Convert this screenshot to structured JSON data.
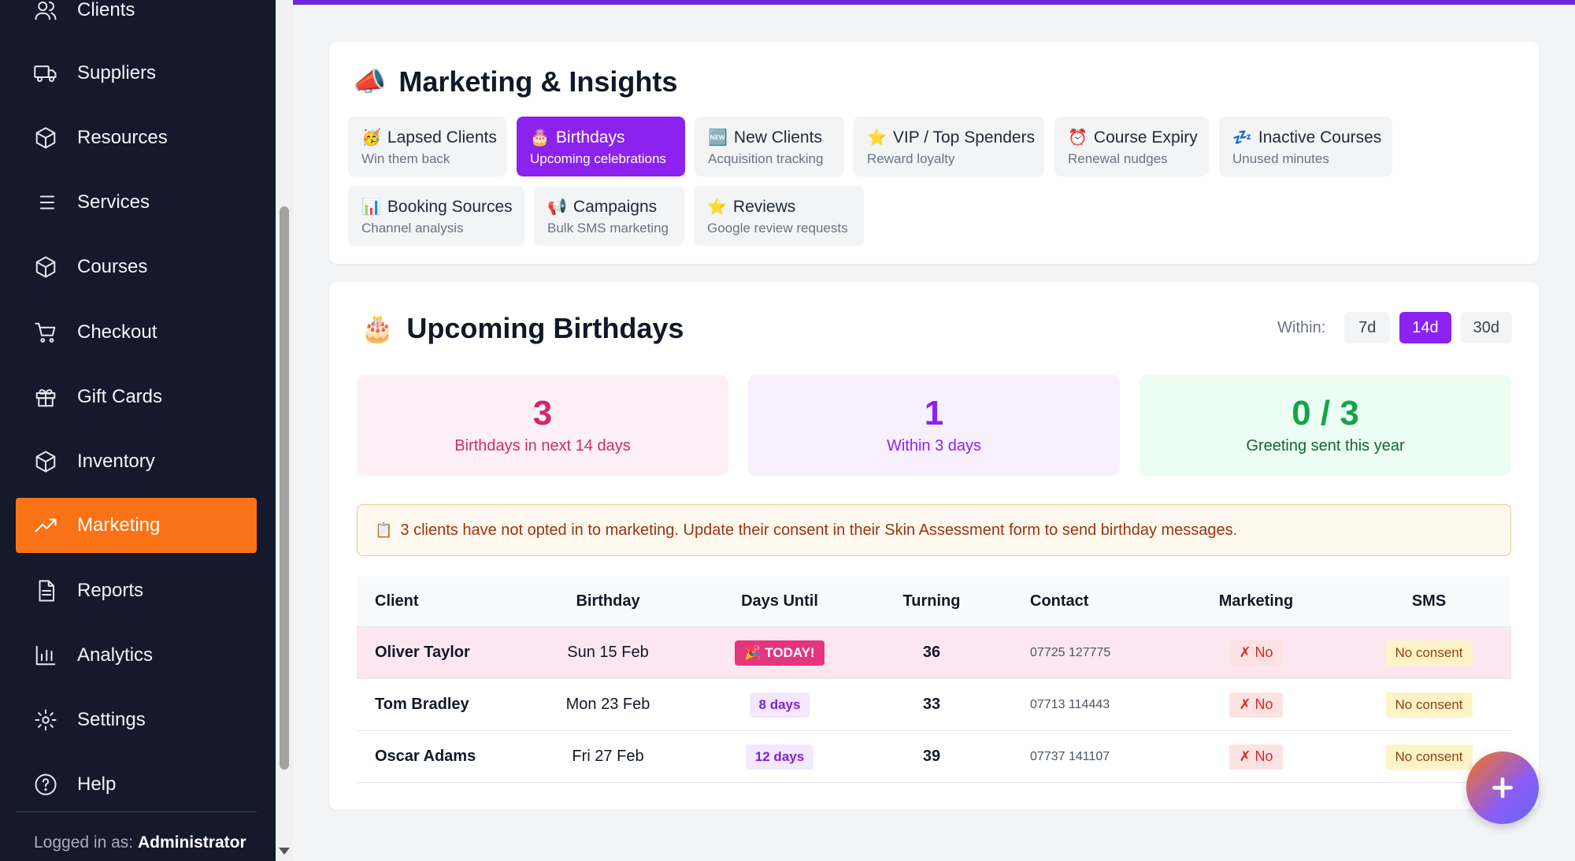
{
  "sidebar": {
    "items": [
      {
        "label": "Clients",
        "icon": "users-icon"
      },
      {
        "label": "Suppliers",
        "icon": "truck-icon"
      },
      {
        "label": "Resources",
        "icon": "box-icon"
      },
      {
        "label": "Services",
        "icon": "list-icon"
      },
      {
        "label": "Courses",
        "icon": "box-icon"
      },
      {
        "label": "Checkout",
        "icon": "cart-icon"
      },
      {
        "label": "Gift Cards",
        "icon": "gift-icon"
      },
      {
        "label": "Inventory",
        "icon": "box-icon"
      },
      {
        "label": "Marketing",
        "icon": "trend-icon",
        "active": true
      },
      {
        "label": "Reports",
        "icon": "document-icon"
      },
      {
        "label": "Analytics",
        "icon": "bar-chart-icon"
      },
      {
        "label": "Settings",
        "icon": "gear-icon"
      },
      {
        "label": "Help",
        "icon": "help-icon"
      }
    ],
    "logged_in_prefix": "Logged in as:",
    "logged_in_user": "Administrator"
  },
  "marketing": {
    "emoji": "📣",
    "title": "Marketing & Insights",
    "tabs": [
      {
        "emoji": "🥳",
        "title": "Lapsed Clients",
        "subtitle": "Win them back"
      },
      {
        "emoji": "🎂",
        "title": "Birthdays",
        "subtitle": "Upcoming celebrations",
        "active": true
      },
      {
        "emoji": "🆕",
        "title": "New Clients",
        "subtitle": "Acquisition tracking"
      },
      {
        "emoji": "⭐",
        "title": "VIP / Top Spenders",
        "subtitle": "Reward loyalty"
      },
      {
        "emoji": "⏰",
        "title": "Course Expiry",
        "subtitle": "Renewal nudges"
      },
      {
        "emoji": "💤",
        "title": "Inactive Courses",
        "subtitle": "Unused minutes"
      },
      {
        "emoji": "📊",
        "title": "Booking Sources",
        "subtitle": "Channel analysis"
      },
      {
        "emoji": "📢",
        "title": "Campaigns",
        "subtitle": "Bulk SMS marketing"
      },
      {
        "emoji": "⭐",
        "title": "Reviews",
        "subtitle": "Google review requests"
      }
    ]
  },
  "birthdays": {
    "emoji": "🎂",
    "title": "Upcoming Birthdays",
    "within_label": "Within:",
    "ranges": [
      {
        "label": "7d"
      },
      {
        "label": "14d",
        "active": true
      },
      {
        "label": "30d"
      }
    ],
    "stats": [
      {
        "value": "3",
        "label": "Birthdays in next 14 days"
      },
      {
        "value": "1",
        "label": "Within 3 days"
      },
      {
        "value": "0 / 3",
        "label": "Greeting sent this year"
      }
    ],
    "notice_emoji": "📋",
    "notice": "3 clients have not opted in to marketing. Update their consent in their Skin Assessment form to send birthday messages.",
    "table": {
      "headers": [
        "Client",
        "Birthday",
        "Days Until",
        "Turning",
        "Contact",
        "Marketing",
        "SMS"
      ],
      "rows": [
        {
          "client": "Oliver Taylor",
          "birthday": "Sun 15 Feb",
          "days_until": "🎉 TODAY!",
          "turning": "36",
          "contact": "07725 127775",
          "marketing": "✗ No",
          "sms": "No consent",
          "today": true
        },
        {
          "client": "Tom Bradley",
          "birthday": "Mon 23 Feb",
          "days_until": "8 days",
          "turning": "33",
          "contact": "07713 114443",
          "marketing": "✗ No",
          "sms": "No consent"
        },
        {
          "client": "Oscar Adams",
          "birthday": "Fri 27 Feb",
          "days_until": "12 days",
          "turning": "39",
          "contact": "07737 141107",
          "marketing": "✗ No",
          "sms": "No consent"
        }
      ]
    }
  },
  "fab_label": "+"
}
